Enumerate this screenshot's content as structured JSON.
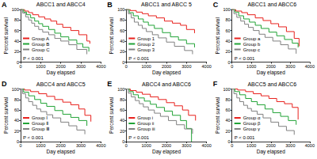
{
  "chart_data": [
    {
      "type": "step",
      "panel": "A",
      "title": "ABCC1 and ABCC4",
      "x_label": "Day elapsed",
      "y_label": "Percent survival",
      "annotation": "P < 0.001",
      "xlim": [
        0,
        4000
      ],
      "xticks": [
        0,
        1000,
        2000,
        3000,
        4000
      ],
      "ylim": [
        0,
        100
      ],
      "yticks": [
        0,
        20,
        40,
        60,
        80,
        100
      ],
      "grid": false,
      "legend": "lower left",
      "series": [
        {
          "name": "Group A",
          "color": "#e8211d",
          "x": [
            0,
            200,
            400,
            600,
            900,
            1200,
            1500,
            1800,
            2100,
            2500,
            2900,
            3300,
            3450
          ],
          "values": [
            100,
            97,
            94,
            90,
            86,
            82,
            78,
            72,
            66,
            60,
            52,
            40,
            35
          ]
        },
        {
          "name": "Group B",
          "color": "#21a336",
          "x": [
            0,
            150,
            300,
            500,
            700,
            900,
            1100,
            1400,
            1700,
            2000,
            2400,
            2800,
            3100,
            3400
          ],
          "values": [
            100,
            95,
            90,
            84,
            78,
            73,
            68,
            62,
            55,
            48,
            42,
            35,
            28,
            20
          ]
        },
        {
          "name": "Group C",
          "color": "#808080",
          "x": [
            0,
            100,
            250,
            400,
            550,
            700,
            900,
            1100,
            1400,
            1700,
            2000,
            2400,
            2800,
            3300
          ],
          "values": [
            100,
            93,
            86,
            80,
            74,
            68,
            62,
            57,
            52,
            45,
            40,
            33,
            24,
            15
          ]
        }
      ]
    },
    {
      "type": "step",
      "panel": "B",
      "title": "ABCC1 and ABCC 5",
      "x_label": "Day elapsed",
      "y_label": "Percent survival",
      "annotation": "P < 0.001",
      "xlim": [
        0,
        4000
      ],
      "xticks": [
        0,
        1000,
        2000,
        3000,
        4000
      ],
      "ylim": [
        0,
        100
      ],
      "yticks": [
        0,
        20,
        40,
        60,
        80,
        100
      ],
      "grid": false,
      "legend": "lower left",
      "series": [
        {
          "name": "Group 1",
          "color": "#e8211d",
          "x": [
            0,
            200,
            500,
            800,
            1100,
            1500,
            1900,
            2300,
            2700,
            3000,
            3400
          ],
          "values": [
            100,
            98,
            95,
            92,
            88,
            84,
            78,
            74,
            70,
            62,
            55
          ]
        },
        {
          "name": "Group 2",
          "color": "#21a336",
          "x": [
            0,
            150,
            350,
            600,
            850,
            1100,
            1400,
            1800,
            2200,
            2600,
            3000,
            3400
          ],
          "values": [
            100,
            94,
            88,
            82,
            76,
            70,
            64,
            56,
            48,
            42,
            35,
            28
          ]
        },
        {
          "name": "Group 3",
          "color": "#808080",
          "x": [
            0,
            100,
            250,
            400,
            600,
            800,
            1000,
            1300,
            1600,
            2000,
            2400,
            2900,
            3300
          ],
          "values": [
            100,
            92,
            84,
            76,
            70,
            64,
            58,
            52,
            46,
            38,
            30,
            22,
            15
          ]
        }
      ]
    },
    {
      "type": "step",
      "panel": "C",
      "title": "ABCC1 and ABCC6",
      "x_label": "Day elapsed",
      "y_label": "Percent survival",
      "annotation": "P < 0.001",
      "xlim": [
        0,
        4000
      ],
      "xticks": [
        0,
        1000,
        2000,
        3000,
        4000
      ],
      "ylim": [
        0,
        100
      ],
      "yticks": [
        0,
        20,
        40,
        60,
        80,
        100
      ],
      "grid": false,
      "legend": "lower left",
      "series": [
        {
          "name": "Group a",
          "color": "#e8211d",
          "x": [
            0,
            200,
            500,
            800,
            1200,
            1600,
            2000,
            2400,
            2800,
            3200,
            3450
          ],
          "values": [
            100,
            97,
            94,
            90,
            84,
            79,
            73,
            67,
            58,
            45,
            30
          ]
        },
        {
          "name": "Group b",
          "color": "#21a336",
          "x": [
            0,
            150,
            350,
            600,
            900,
            1200,
            1500,
            1900,
            2300,
            2700,
            3100,
            3400
          ],
          "values": [
            100,
            95,
            88,
            82,
            76,
            70,
            64,
            57,
            50,
            43,
            36,
            28
          ]
        },
        {
          "name": "Group c",
          "color": "#808080",
          "x": [
            0,
            100,
            250,
            450,
            650,
            850,
            1100,
            1400,
            1700,
            2100,
            2500,
            2900,
            3300
          ],
          "values": [
            100,
            92,
            85,
            78,
            72,
            66,
            60,
            53,
            47,
            40,
            33,
            25,
            16
          ]
        }
      ]
    },
    {
      "type": "step",
      "panel": "D",
      "title": "ABCC4 and ABCC5",
      "x_label": "Day elapsed",
      "y_label": "Percent survival",
      "annotation": "P < 0.001",
      "xlim": [
        0,
        4000
      ],
      "xticks": [
        0,
        1000,
        2000,
        3000,
        4000
      ],
      "ylim": [
        0,
        100
      ],
      "yticks": [
        0,
        20,
        40,
        60,
        80,
        100
      ],
      "grid": false,
      "legend": "lower left",
      "series": [
        {
          "name": "Group Ⅰ",
          "color": "#e8211d",
          "x": [
            0,
            200,
            500,
            900,
            1300,
            1700,
            2100,
            2500,
            2900,
            3200,
            3500
          ],
          "values": [
            100,
            98,
            95,
            91,
            86,
            80,
            75,
            70,
            62,
            50,
            38
          ]
        },
        {
          "name": "Group Ⅱ",
          "color": "#21a336",
          "x": [
            0,
            150,
            400,
            700,
            1000,
            1300,
            1700,
            2100,
            2500,
            2900,
            3300
          ],
          "values": [
            100,
            94,
            87,
            80,
            73,
            67,
            59,
            52,
            46,
            40,
            30
          ]
        },
        {
          "name": "Group Ⅲ",
          "color": "#808080",
          "x": [
            0,
            100,
            250,
            400,
            600,
            800,
            1000,
            1300,
            1600,
            2000,
            2400,
            2800,
            3200
          ],
          "values": [
            100,
            91,
            83,
            76,
            69,
            62,
            57,
            51,
            45,
            37,
            30,
            22,
            14
          ]
        }
      ]
    },
    {
      "type": "step",
      "panel": "E",
      "title": "ABCC4 and ABCC6",
      "x_label": "Day elapsed",
      "y_label": "Percent survival",
      "annotation": "P < 0.001",
      "xlim": [
        0,
        4000
      ],
      "xticks": [
        0,
        1000,
        2000,
        3000,
        4000
      ],
      "ylim": [
        0,
        100
      ],
      "yticks": [
        0,
        20,
        40,
        60,
        80,
        100
      ],
      "grid": false,
      "legend": "lower left",
      "series": [
        {
          "name": "Group i",
          "color": "#e8211d",
          "x": [
            0,
            200,
            500,
            800,
            1200,
            1600,
            2000,
            2400,
            2800,
            3100,
            3450
          ],
          "values": [
            100,
            97,
            94,
            90,
            85,
            80,
            74,
            68,
            60,
            50,
            40
          ]
        },
        {
          "name": "Group ii",
          "color": "#21a336",
          "x": [
            0,
            150,
            350,
            600,
            900,
            1200,
            1500,
            1900,
            2300,
            2700,
            3000,
            3250
          ],
          "values": [
            100,
            95,
            89,
            83,
            77,
            71,
            65,
            58,
            50,
            40,
            25,
            0
          ]
        },
        {
          "name": "Group iii",
          "color": "#808080",
          "x": [
            0,
            100,
            250,
            450,
            650,
            850,
            1100,
            1400,
            1700,
            2100,
            2500,
            2900,
            3300
          ],
          "values": [
            100,
            92,
            85,
            78,
            72,
            66,
            60,
            54,
            48,
            40,
            32,
            24,
            15
          ]
        }
      ]
    },
    {
      "type": "step",
      "panel": "F",
      "title": "ABCC5 and ABCC6",
      "x_label": "Day elapsed",
      "y_label": "Percent survival",
      "annotation": "P < 0.001",
      "xlim": [
        0,
        4000
      ],
      "xticks": [
        0,
        1000,
        2000,
        3000,
        4000
      ],
      "ylim": [
        0,
        100
      ],
      "yticks": [
        0,
        20,
        40,
        60,
        80,
        100
      ],
      "grid": false,
      "legend": "lower left",
      "series": [
        {
          "name": "Group α",
          "color": "#e8211d",
          "x": [
            0,
            300,
            700,
            1100,
            1500,
            1900,
            2300,
            2700,
            3100,
            3400
          ],
          "values": [
            100,
            98,
            95,
            91,
            87,
            82,
            76,
            72,
            65,
            42
          ]
        },
        {
          "name": "Group β",
          "color": "#21a336",
          "x": [
            0,
            150,
            400,
            700,
            1000,
            1300,
            1700,
            2100,
            2500,
            2900,
            3300
          ],
          "values": [
            100,
            95,
            89,
            82,
            76,
            70,
            62,
            55,
            48,
            40,
            32
          ]
        },
        {
          "name": "Group γ",
          "color": "#808080",
          "x": [
            0,
            100,
            250,
            400,
            600,
            800,
            1000,
            1300,
            1600,
            2000,
            2400,
            2800,
            3200
          ],
          "values": [
            100,
            91,
            83,
            76,
            69,
            63,
            58,
            52,
            45,
            37,
            29,
            21,
            13
          ]
        }
      ]
    }
  ]
}
